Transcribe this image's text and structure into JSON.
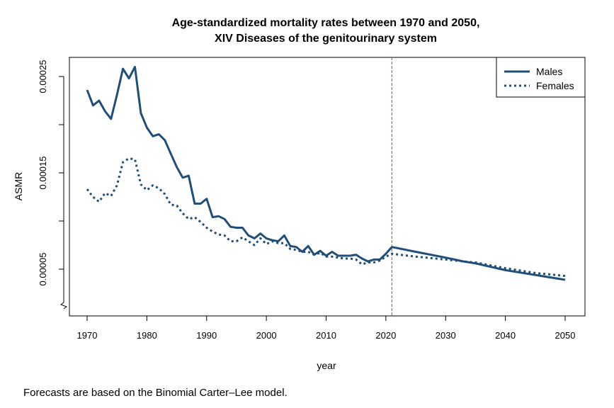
{
  "chart_data": {
    "type": "line",
    "title_line1": "Age-standardized mortality rates between 1970 and 2050,",
    "title_line2": "XIV Diseases of the genitourinary system",
    "xlabel": "year",
    "ylabel": "ASMR",
    "xlim": [
      1970,
      2050
    ],
    "ylim": [
      3e-05,
      0.00027
    ],
    "x_ticks": [
      1970,
      1980,
      1990,
      2000,
      2010,
      2020,
      2030,
      2040,
      2050
    ],
    "x_tick_labels": [
      "1970",
      "1980",
      "1990",
      "2000",
      "2010",
      "2020",
      "2030",
      "2040",
      "2050"
    ],
    "y_ticks": [
      5e-05,
      0.0001,
      0.00015,
      0.0002,
      0.00025
    ],
    "y_tick_labels": [
      "0.00005",
      "",
      "0.00015",
      "",
      "0.00025"
    ],
    "axis_break": true,
    "forecast_start_year": 2021,
    "forecast_line_color": "#a0522d",
    "legend_position": "top-right",
    "series": [
      {
        "name": "Males",
        "style": "solid",
        "color": "#1f4e79",
        "x": [
          1970,
          1971,
          1972,
          1973,
          1974,
          1975,
          1976,
          1977,
          1978,
          1979,
          1980,
          1981,
          1982,
          1983,
          1984,
          1985,
          1986,
          1987,
          1988,
          1989,
          1990,
          1991,
          1992,
          1993,
          1994,
          1995,
          1996,
          1997,
          1998,
          1999,
          2000,
          2001,
          2002,
          2003,
          2004,
          2005,
          2006,
          2007,
          2008,
          2009,
          2010,
          2011,
          2012,
          2013,
          2014,
          2015,
          2016,
          2017,
          2018,
          2019,
          2020,
          2021,
          2025,
          2030,
          2033,
          2035,
          2040,
          2045,
          2050
        ],
        "y": [
          0.000236,
          0.00022,
          0.000225,
          0.000214,
          0.000206,
          0.000231,
          0.000258,
          0.000248,
          0.00026,
          0.000212,
          0.000197,
          0.000188,
          0.00019,
          0.000184,
          0.00017,
          0.000156,
          0.000145,
          0.000147,
          0.000118,
          0.000118,
          0.000123,
          0.000104,
          0.000105,
          0.000102,
          9.4e-05,
          9.3e-05,
          9.3e-05,
          8.5e-05,
          8.2e-05,
          8.7e-05,
          8.2e-05,
          8e-05,
          7.9e-05,
          8.5e-05,
          7.4e-05,
          7.3e-05,
          6.8e-05,
          7.4e-05,
          6.5e-05,
          6.9e-05,
          6.4e-05,
          6.8e-05,
          6.4e-05,
          6.4e-05,
          6.4e-05,
          6.5e-05,
          6.1e-05,
          5.8e-05,
          6e-05,
          6e-05,
          6.6e-05,
          7.3e-05,
          6.8e-05,
          6.2e-05,
          5.8e-05,
          5.6e-05,
          4.9e-05,
          4.4e-05,
          3.9e-05
        ]
      },
      {
        "name": "Females",
        "style": "dotted",
        "color": "#1f4e79",
        "x": [
          1970,
          1971,
          1972,
          1973,
          1974,
          1975,
          1976,
          1977,
          1978,
          1979,
          1980,
          1981,
          1982,
          1983,
          1984,
          1985,
          1986,
          1987,
          1988,
          1989,
          1990,
          1991,
          1992,
          1993,
          1994,
          1995,
          1996,
          1997,
          1998,
          1999,
          2000,
          2001,
          2002,
          2003,
          2004,
          2005,
          2006,
          2007,
          2008,
          2009,
          2010,
          2011,
          2012,
          2013,
          2014,
          2015,
          2016,
          2017,
          2018,
          2019,
          2020,
          2021,
          2025,
          2030,
          2033,
          2035,
          2040,
          2045,
          2050
        ],
        "y": [
          0.000133,
          0.000125,
          0.00012,
          0.000129,
          0.000126,
          0.000137,
          0.000161,
          0.000165,
          0.000164,
          0.000138,
          0.000132,
          0.000137,
          0.000134,
          0.000128,
          0.000117,
          0.000116,
          0.000108,
          0.000102,
          0.000104,
          9.9e-05,
          9.3e-05,
          8.9e-05,
          8.6e-05,
          8.5e-05,
          7.9e-05,
          7.9e-05,
          8.3e-05,
          7.9e-05,
          7.5e-05,
          8.2e-05,
          7.6e-05,
          7.9e-05,
          7.7e-05,
          7.7e-05,
          7.1e-05,
          7e-05,
          6.8e-05,
          6.8e-05,
          6.5e-05,
          6.7e-05,
          6.3e-05,
          6.3e-05,
          6.2e-05,
          6.1e-05,
          6.1e-05,
          6e-05,
          5.5e-05,
          5.7e-05,
          5.7e-05,
          5.9e-05,
          6.3e-05,
          6.6e-05,
          6.3e-05,
          6e-05,
          5.8e-05,
          5.7e-05,
          5.1e-05,
          4.6e-05,
          4.3e-05
        ]
      }
    ],
    "footnote": "Forecasts are based on the Binomial Carter–Lee model."
  }
}
